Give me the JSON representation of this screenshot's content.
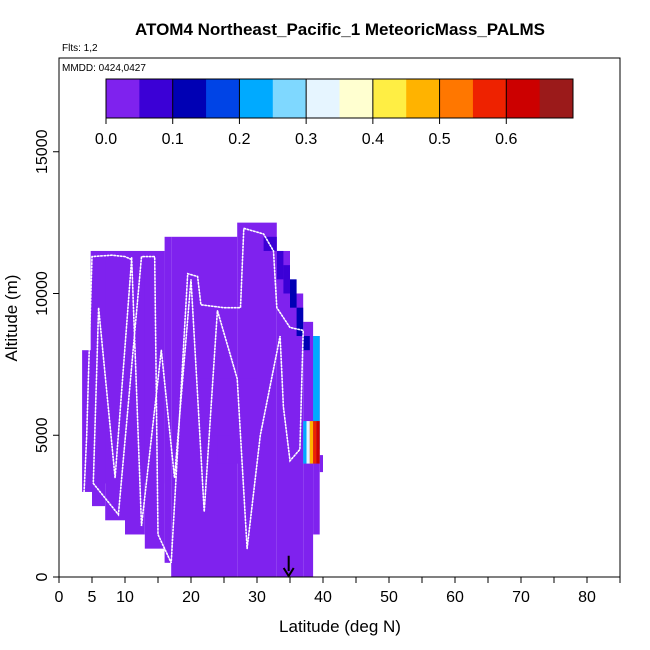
{
  "chart_data": {
    "type": "heatmap",
    "title": "ATOM4 Northeast_Pacific_1 MeteoricMass_PALMS",
    "flights_label": "Flts: 1,2",
    "dates_label": "MMDD: 0424,0427",
    "xlabel": "Latitude (deg N)",
    "ylabel": "Altitude (m)",
    "xlim": [
      0,
      85
    ],
    "ylim": [
      0,
      17500
    ],
    "x_ticks": [
      0,
      5,
      10,
      20,
      30,
      40,
      50,
      60,
      70,
      80
    ],
    "x_tick_labels": [
      "0",
      "5",
      "10",
      "20",
      "30",
      "40",
      "50",
      "60",
      "70",
      "80"
    ],
    "x_minor_ticks": [
      15,
      25,
      35,
      45,
      55,
      65,
      75,
      85
    ],
    "y_ticks": [
      0,
      5000,
      10000,
      15000
    ],
    "y_tick_labels": [
      "0",
      "5000",
      "10000",
      "15000"
    ],
    "grid": false,
    "colorbar": {
      "position": "top",
      "range": [
        0,
        0.7
      ],
      "tick_values": [
        0.0,
        0.1,
        0.2,
        0.3,
        0.4,
        0.5,
        0.6
      ],
      "tick_labels": [
        "0.0",
        "0.1",
        "0.2",
        "0.3",
        "0.4",
        "0.5",
        "0.6"
      ],
      "colors": [
        "#7f22ee",
        "#3b00d6",
        "#0000b4",
        "#0044e6",
        "#00aaff",
        "#7fd8ff",
        "#e6f5ff",
        "#ffffd0",
        "#ffee44",
        "#ffb300",
        "#ff7700",
        "#ee2200",
        "#cc0000",
        "#9b1a1a"
      ]
    },
    "cells": [
      {
        "x": [
          4.8,
          16
        ],
        "y": [
          3300,
          11500
        ],
        "value": 0.0
      },
      {
        "x": [
          3.5,
          5
        ],
        "y": [
          3000,
          8000
        ],
        "value": 0.0
      },
      {
        "x": [
          5,
          7
        ],
        "y": [
          2500,
          11500
        ],
        "value": 0.0
      },
      {
        "x": [
          7,
          10
        ],
        "y": [
          2000,
          11500
        ],
        "value": 0.0
      },
      {
        "x": [
          10,
          13
        ],
        "y": [
          1500,
          11500
        ],
        "value": 0.0
      },
      {
        "x": [
          13,
          16
        ],
        "y": [
          1000,
          11500
        ],
        "value": 0.0
      },
      {
        "x": [
          16,
          17
        ],
        "y": [
          500,
          12000
        ],
        "value": 0.0
      },
      {
        "x": [
          17,
          27
        ],
        "y": [
          0,
          12000
        ],
        "value": 0.0
      },
      {
        "x": [
          27,
          33
        ],
        "y": [
          0,
          12500
        ],
        "value": 0.0
      },
      {
        "x": [
          33,
          35
        ],
        "y": [
          0,
          11500
        ],
        "value": 0.0
      },
      {
        "x": [
          35,
          37
        ],
        "y": [
          0,
          10000
        ],
        "value": 0.0
      },
      {
        "x": [
          37,
          38.5
        ],
        "y": [
          0,
          9000
        ],
        "value": 0.0
      },
      {
        "x": [
          38.5,
          39.5
        ],
        "y": [
          1500,
          8500
        ],
        "value": 0.0
      },
      {
        "x": [
          39.5,
          40
        ],
        "y": [
          3700,
          4300
        ],
        "value": 0.0
      },
      {
        "x": [
          21,
          30
        ],
        "y": [
          5000,
          7000
        ],
        "value": 0.03
      },
      {
        "x": [
          24,
          29
        ],
        "y": [
          4000,
          5000
        ],
        "value": 0.04
      },
      {
        "x": [
          31,
          33
        ],
        "y": [
          11500,
          12000
        ],
        "value": 0.06
      },
      {
        "x": [
          33,
          34
        ],
        "y": [
          10500,
          11500
        ],
        "value": 0.06
      },
      {
        "x": [
          34,
          35
        ],
        "y": [
          10000,
          11000
        ],
        "value": 0.08
      },
      {
        "x": [
          35,
          36
        ],
        "y": [
          9500,
          10500
        ],
        "value": 0.1
      },
      {
        "x": [
          36,
          37
        ],
        "y": [
          8500,
          9500
        ],
        "value": 0.12
      },
      {
        "x": [
          37,
          38
        ],
        "y": [
          8000,
          8500
        ],
        "value": 0.1
      },
      {
        "x": [
          38.5,
          39.5
        ],
        "y": [
          4500,
          8500
        ],
        "value": 0.2
      },
      {
        "x": [
          37,
          37.5
        ],
        "y": [
          4000,
          5500
        ],
        "value": 0.24
      },
      {
        "x": [
          37.5,
          38
        ],
        "y": [
          4000,
          5500
        ],
        "value": 0.33
      },
      {
        "x": [
          38,
          38.5
        ],
        "y": [
          4000,
          5500
        ],
        "value": 0.45
      },
      {
        "x": [
          38.5,
          39
        ],
        "y": [
          4000,
          5500
        ],
        "value": 0.55
      },
      {
        "x": [
          39,
          39.5
        ],
        "y": [
          4000,
          5500
        ],
        "value": 0.62
      }
    ],
    "flight_track": [
      {
        "x": 3.8,
        "y": 3000
      },
      {
        "x": 4.2,
        "y": 5000
      },
      {
        "x": 5.0,
        "y": 11300
      },
      {
        "x": 8.0,
        "y": 11350
      },
      {
        "x": 10.0,
        "y": 11300
      },
      {
        "x": 11.0,
        "y": 11200
      },
      {
        "x": 8.5,
        "y": 3500
      },
      {
        "x": 6.0,
        "y": 9500
      },
      {
        "x": 5.2,
        "y": 3300
      },
      {
        "x": 9.0,
        "y": 2200
      },
      {
        "x": 12.5,
        "y": 11300
      },
      {
        "x": 14.5,
        "y": 11300
      },
      {
        "x": 15.0,
        "y": 1500
      },
      {
        "x": 17.0,
        "y": 500
      },
      {
        "x": 19.5,
        "y": 10700
      },
      {
        "x": 21.0,
        "y": 10600
      },
      {
        "x": 21.5,
        "y": 9600
      },
      {
        "x": 25.0,
        "y": 9500
      },
      {
        "x": 27.5,
        "y": 9500
      },
      {
        "x": 28.0,
        "y": 12300
      },
      {
        "x": 31.0,
        "y": 12100
      },
      {
        "x": 32.5,
        "y": 11500
      },
      {
        "x": 33.0,
        "y": 9500
      },
      {
        "x": 35.0,
        "y": 8800
      },
      {
        "x": 37.0,
        "y": 8700
      },
      {
        "x": 36.5,
        "y": 4500
      },
      {
        "x": 35.0,
        "y": 4100
      },
      {
        "x": 34.0,
        "y": 6000
      },
      {
        "x": 33.5,
        "y": 8500
      },
      {
        "x": 30.5,
        "y": 5000
      },
      {
        "x": 28.5,
        "y": 1000
      },
      {
        "x": 27.0,
        "y": 7000
      },
      {
        "x": 24.0,
        "y": 9400
      },
      {
        "x": 22.0,
        "y": 2300
      },
      {
        "x": 20.0,
        "y": 10500
      },
      {
        "x": 17.5,
        "y": 3500
      },
      {
        "x": 15.5,
        "y": 8000
      },
      {
        "x": 12.5,
        "y": 1800
      },
      {
        "x": 11.0,
        "y": 11300
      }
    ],
    "arrow_marker": {
      "x": 34.8,
      "y_top": 750,
      "y_bottom": 0
    }
  }
}
